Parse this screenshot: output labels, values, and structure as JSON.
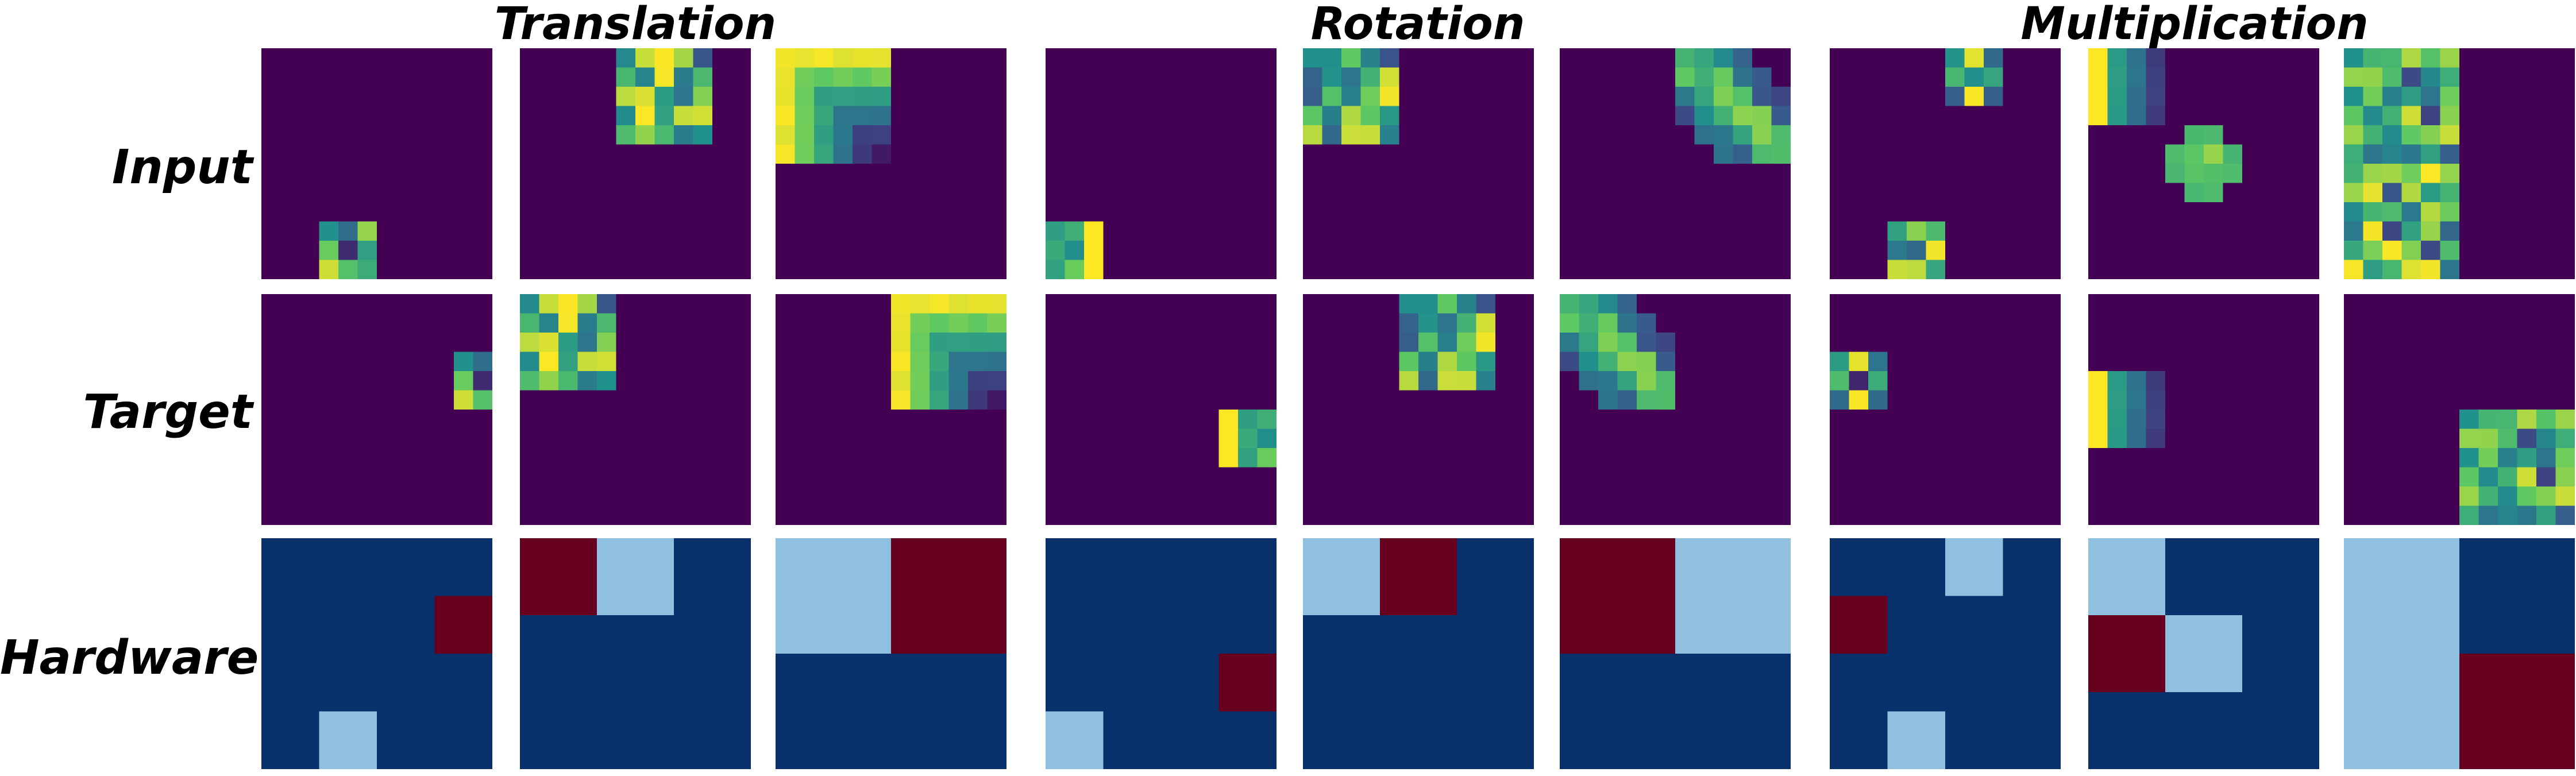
{
  "groups": [
    "Translation",
    "Rotation",
    "Multiplication"
  ],
  "rows": [
    "Input",
    "Target",
    "Hardware"
  ],
  "colors": {
    "viridis_background": "#440154",
    "hardware_background": "#08306b",
    "hardware_light": "#8fc0df",
    "hardware_dark": "#67001f"
  },
  "panels": [
    {
      "group": "Translation",
      "input": {
        "origin": [
          9,
          3
        ],
        "size": [
          3,
          3
        ],
        "pattern": "ring"
      },
      "target": {
        "origin": [
          3,
          10
        ],
        "size": [
          3,
          3
        ],
        "pattern": "ring"
      },
      "hardware": {
        "grid": [
          4,
          4
        ],
        "light": [
          [
            3,
            1
          ]
        ],
        "dark": [
          [
            1,
            3
          ]
        ]
      }
    },
    {
      "group": "Translation",
      "input": {
        "origin": [
          0,
          5
        ],
        "size": [
          5,
          5
        ],
        "pattern": "checker"
      },
      "target": {
        "origin": [
          0,
          0
        ],
        "size": [
          5,
          5
        ],
        "pattern": "checker"
      },
      "hardware": {
        "grid": [
          3,
          3
        ],
        "light": [
          [
            0,
            1
          ]
        ],
        "dark": [
          [
            0,
            0
          ]
        ]
      }
    },
    {
      "group": "Translation",
      "input": {
        "origin": [
          0,
          0
        ],
        "size": [
          6,
          6
        ],
        "pattern": "corner"
      },
      "target": {
        "origin": [
          0,
          6
        ],
        "size": [
          6,
          6
        ],
        "pattern": "corner"
      },
      "hardware": {
        "grid": [
          2,
          2
        ],
        "light": [
          [
            0,
            0
          ]
        ],
        "dark": [
          [
            0,
            1
          ]
        ]
      }
    },
    {
      "group": "Rotation",
      "input": {
        "origin": [
          9,
          0
        ],
        "size": [
          3,
          3
        ],
        "pattern": "stripe-l"
      },
      "target": {
        "origin": [
          6,
          9
        ],
        "size": [
          3,
          3
        ],
        "pattern": "stripe-r"
      },
      "hardware": {
        "grid": [
          4,
          4
        ],
        "light": [
          [
            3,
            0
          ]
        ],
        "dark": [
          [
            2,
            3
          ]
        ]
      }
    },
    {
      "group": "Rotation",
      "input": {
        "origin": [
          0,
          0
        ],
        "size": [
          5,
          5
        ],
        "pattern": "checker"
      },
      "target": {
        "origin": [
          0,
          5
        ],
        "size": [
          5,
          5
        ],
        "pattern": "checker"
      },
      "hardware": {
        "grid": [
          3,
          3
        ],
        "light": [
          [
            0,
            0
          ]
        ],
        "dark": [
          [
            0,
            1
          ]
        ]
      }
    },
    {
      "group": "Rotation",
      "input": {
        "origin": [
          0,
          6
        ],
        "size": [
          6,
          6
        ],
        "pattern": "diag"
      },
      "target": {
        "origin": [
          0,
          0
        ],
        "size": [
          6,
          6
        ],
        "pattern": "diag"
      },
      "hardware": {
        "grid": [
          2,
          2
        ],
        "light": [
          [
            0,
            1
          ]
        ],
        "dark": [
          [
            0,
            0
          ]
        ]
      }
    },
    {
      "group": "Multiplication",
      "input": {
        "blocks": [
          {
            "origin": [
              0,
              6
            ],
            "size": [
              3,
              3
            ],
            "pattern": "checker"
          },
          {
            "origin": [
              9,
              3
            ],
            "size": [
              3,
              3
            ],
            "pattern": "ring"
          }
        ]
      },
      "target": {
        "blocks": [
          {
            "origin": [
              3,
              0
            ],
            "size": [
              3,
              3
            ],
            "pattern": "ring"
          }
        ]
      },
      "hardware": {
        "grid": [
          4,
          4
        ],
        "light": [
          [
            0,
            2
          ],
          [
            3,
            1
          ]
        ],
        "dark": [
          [
            1,
            0
          ]
        ]
      }
    },
    {
      "group": "Multiplication",
      "input": {
        "blocks": [
          {
            "origin": [
              0,
              0
            ],
            "size": [
              4,
              4
            ],
            "pattern": "fade"
          },
          {
            "origin": [
              4,
              4
            ],
            "size": [
              4,
              4
            ],
            "pattern": "diamond"
          }
        ]
      },
      "target": {
        "blocks": [
          {
            "origin": [
              4,
              0
            ],
            "size": [
              4,
              4
            ],
            "pattern": "fade"
          }
        ]
      },
      "hardware": {
        "grid": [
          3,
          3
        ],
        "light": [
          [
            0,
            0
          ],
          [
            1,
            1
          ]
        ],
        "dark": [
          [
            1,
            0
          ]
        ]
      }
    },
    {
      "group": "Multiplication",
      "input": {
        "blocks": [
          {
            "origin": [
              0,
              0
            ],
            "size": [
              12,
              6
            ],
            "pattern": "noise"
          }
        ]
      },
      "target": {
        "blocks": [
          {
            "origin": [
              6,
              6
            ],
            "size": [
              6,
              6
            ],
            "pattern": "noise"
          }
        ]
      },
      "hardware": {
        "grid": [
          2,
          2
        ],
        "light": [
          [
            0,
            0
          ],
          [
            1,
            0
          ]
        ],
        "dark": [
          [
            1,
            1
          ]
        ]
      }
    }
  ]
}
